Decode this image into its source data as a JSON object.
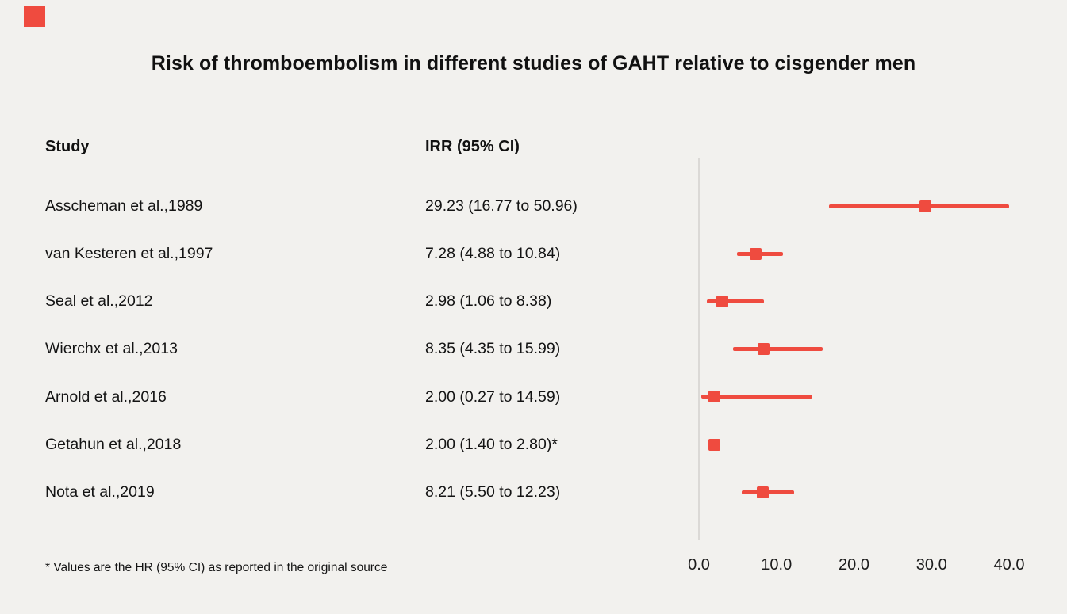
{
  "page": {
    "title": "Risk of thromboembolism in different studies of GAHT relative to cisgender men",
    "footnote": "* Values are the HR (95% CI) as reported in the original source"
  },
  "columns": {
    "study": "Study",
    "irr": "IRR (95% CI)"
  },
  "colors": {
    "accent_red": "#ef4b3f",
    "background": "#f2f1ee",
    "axis_gray": "#dbd9d6"
  },
  "chart_data": {
    "type": "scatter",
    "subtype": "forest-plot",
    "title": "Risk of thromboembolism in different studies of GAHT relative to cisgender men",
    "xlabel": "IRR (95% CI)",
    "xlim": [
      0,
      40
    ],
    "x_tick_values": [
      0,
      10,
      20,
      30,
      40
    ],
    "x_tick_labels": [
      "0.0",
      "10.0",
      "20.0",
      "30.0",
      "40.0"
    ],
    "legend": "none",
    "grid": "off",
    "marker": "square",
    "rows": [
      {
        "study": "Asscheman et al.,1989",
        "label": "29.23 (16.77 to 50.96)",
        "estimate": 29.23,
        "lower": 16.77,
        "upper": 50.96
      },
      {
        "study": "van Kesteren et al.,1997",
        "label": "7.28 (4.88 to 10.84)",
        "estimate": 7.28,
        "lower": 4.88,
        "upper": 10.84
      },
      {
        "study": "Seal et al.,2012",
        "label": "2.98 (1.06 to 8.38)",
        "estimate": 2.98,
        "lower": 1.06,
        "upper": 8.38
      },
      {
        "study": "Wierchx et al.,2013",
        "label": "8.35 (4.35 to 15.99)",
        "estimate": 8.35,
        "lower": 4.35,
        "upper": 15.99
      },
      {
        "study": "Arnold et al.,2016",
        "label": "2.00 (0.27 to 14.59)",
        "estimate": 2.0,
        "lower": 0.27,
        "upper": 14.59
      },
      {
        "study": "Getahun et al.,2018",
        "label": "2.00 (1.40 to 2.80)*",
        "estimate": 2.0,
        "lower": 1.4,
        "upper": 2.8
      },
      {
        "study": "Nota et al.,2019",
        "label": "8.21 (5.50 to 12.23)",
        "estimate": 8.21,
        "lower": 5.5,
        "upper": 12.23
      }
    ]
  }
}
